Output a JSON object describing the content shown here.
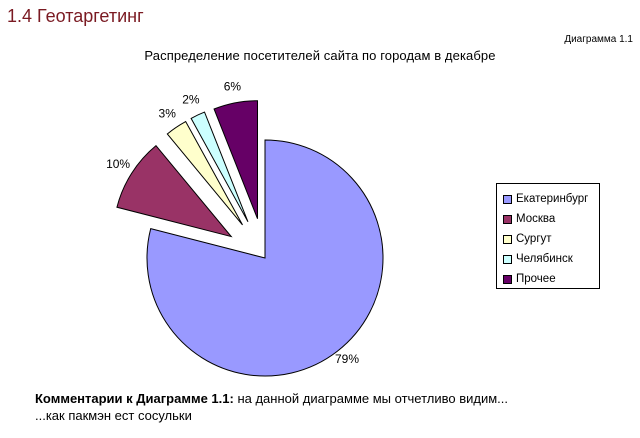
{
  "header": {
    "section_title": "1.4 Геотаргетинг",
    "diagram_label": "Диаграмма 1.1"
  },
  "chart_data": {
    "type": "pie",
    "title": "Распределение посетителей сайта по городам в декабре",
    "legend_position": "right",
    "exploded": true,
    "slices": [
      {
        "label": "Екатеринбург",
        "value": 79,
        "value_label": "79%",
        "color": "#9999ff",
        "exploded": false
      },
      {
        "label": "Москва",
        "value": 10,
        "value_label": "10%",
        "color": "#993366",
        "exploded": true
      },
      {
        "label": "Сургут",
        "value": 3,
        "value_label": "3%",
        "color": "#ffffcc",
        "exploded": true
      },
      {
        "label": "Челябинск",
        "value": 2,
        "value_label": "2%",
        "color": "#ccffff",
        "exploded": true
      },
      {
        "label": "Прочее",
        "value": 6,
        "value_label": "6%",
        "color": "#660066",
        "exploded": true
      }
    ]
  },
  "comment": {
    "heading": "Комментарии к Диаграмме 1.1:",
    "line1": " на данной диаграмме мы отчетливо видим...",
    "line2": "...как пакмэн ест сосульки"
  }
}
